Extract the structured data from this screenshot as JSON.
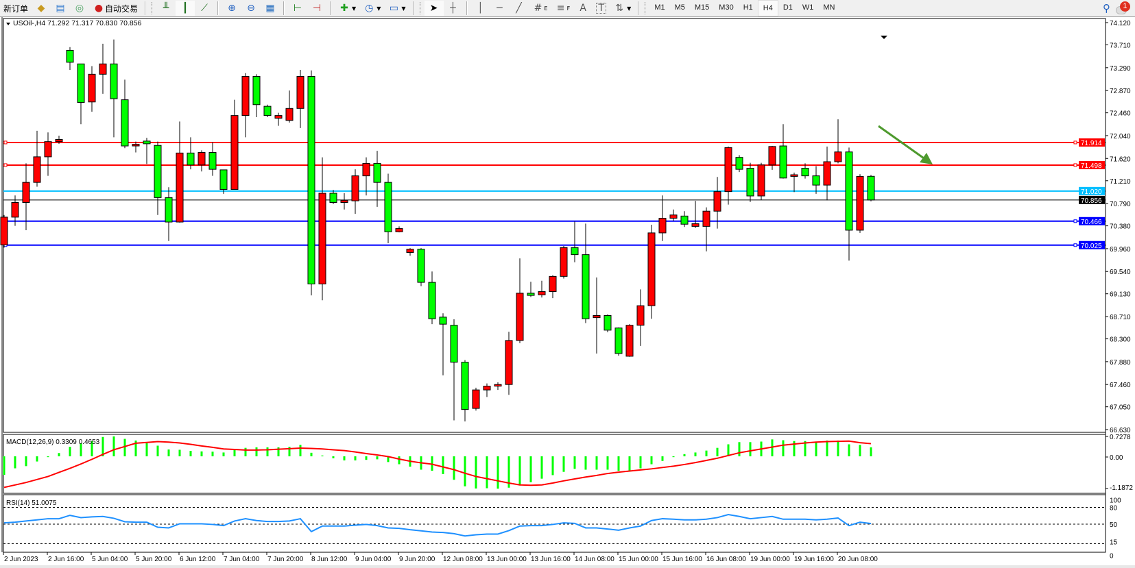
{
  "toolbar": {
    "new_order_label": "新订单",
    "auto_trading_label": "自动交易",
    "icons_left": [
      "market-watch-icon",
      "data-window-icon",
      "navigator-icon"
    ],
    "chart_type_icons": [
      "bar-chart-icon",
      "candlestick-icon",
      "line-chart-icon"
    ],
    "zoom_icons": [
      "zoom-in-icon",
      "zoom-out-icon",
      "tile-windows-icon"
    ],
    "scroll_icons": [
      "auto-scroll-icon",
      "chart-shift-icon"
    ],
    "object_tools": [
      "cursor-icon",
      "crosshair-icon",
      "vertical-line-icon",
      "horizontal-line-icon",
      "trendline-icon",
      "equidistant-channel-icon",
      "fibonacci-icon",
      "text-icon",
      "text-label-icon",
      "arrows-icon"
    ],
    "fib_channel_sub": "E",
    "fib_sub": "F",
    "text_tool": "A",
    "label_tool": "T",
    "timeframes": [
      "M1",
      "M5",
      "M15",
      "M30",
      "H1",
      "H4",
      "D1",
      "W1",
      "MN"
    ],
    "active_timeframe": "H4",
    "notification_count": "1"
  },
  "chart": {
    "header": "USOil-,H4  71.292 71.317 70.830 70.856",
    "symbol": "USOil-",
    "timeframe": "H4",
    "ohlc_readout": {
      "open": 71.292,
      "high": 71.317,
      "low": 70.83,
      "close": 70.856
    }
  },
  "colors": {
    "bull": "#ff0000",
    "bear": "#00ff00",
    "resistance": "#ff0000",
    "ask_line": "#00bfff",
    "bid_line": "#000000",
    "support": "#0000ff",
    "arrow": "#4e9a2e",
    "macd_hist": "#00ff00",
    "macd_signal": "#ff0000",
    "rsi": "#1e90ff"
  },
  "chart_data": [
    {
      "type": "candlestick",
      "title": "USOil-,H4",
      "yticks": [
        "74.120",
        "73.710",
        "73.290",
        "72.870",
        "72.460",
        "72.040",
        "71.620",
        "71.210",
        "70.790",
        "70.380",
        "69.960",
        "69.540",
        "69.130",
        "68.710",
        "68.300",
        "67.880",
        "67.460",
        "67.050",
        "66.630"
      ],
      "ylim": [
        66.63,
        74.12
      ],
      "xtick_labels": [
        "2 Jun 2023",
        "2 Jun 16:00",
        "5 Jun 04:00",
        "5 Jun 20:00",
        "6 Jun 12:00",
        "7 Jun 04:00",
        "7 Jun 20:00",
        "8 Jun 12:00",
        "9 Jun 04:00",
        "9 Jun 20:00",
        "12 Jun 08:00",
        "13 Jun 00:00",
        "13 Jun 16:00",
        "14 Jun 08:00",
        "15 Jun 00:00",
        "15 Jun 16:00",
        "16 Jun 08:00",
        "19 Jun 00:00",
        "19 Jun 16:00",
        "20 Jun 08:00"
      ],
      "xtick_every_bars": 4,
      "ohlc": [
        [
          70.03,
          70.58,
          69.98,
          70.54
        ],
        [
          70.54,
          70.94,
          70.38,
          70.81
        ],
        [
          70.81,
          71.53,
          70.3,
          71.18
        ],
        [
          71.18,
          72.13,
          71.1,
          71.65
        ],
        [
          71.65,
          72.1,
          71.3,
          71.93
        ],
        [
          71.93,
          72.04,
          71.89,
          71.97
        ],
        [
          73.61,
          73.67,
          73.25,
          73.39
        ],
        [
          73.36,
          73.36,
          72.25,
          72.65
        ],
        [
          72.66,
          73.32,
          72.48,
          73.17
        ],
        [
          73.17,
          73.73,
          72.81,
          73.36
        ],
        [
          73.36,
          73.81,
          72.01,
          72.72
        ],
        [
          72.7,
          73.07,
          71.81,
          71.85
        ],
        [
          71.85,
          71.93,
          71.73,
          71.88
        ],
        [
          71.94,
          72.0,
          71.52,
          71.89
        ],
        [
          71.86,
          71.93,
          70.58,
          70.9
        ],
        [
          70.9,
          71.09,
          70.1,
          70.45
        ],
        [
          70.45,
          72.3,
          70.44,
          71.72
        ],
        [
          71.72,
          72.01,
          71.42,
          71.5
        ],
        [
          71.5,
          71.77,
          71.38,
          71.73
        ],
        [
          71.73,
          71.92,
          71.3,
          71.42
        ],
        [
          71.41,
          71.41,
          70.97,
          71.05
        ],
        [
          71.05,
          72.7,
          71.05,
          72.41
        ],
        [
          72.41,
          73.19,
          72.01,
          73.13
        ],
        [
          73.13,
          73.17,
          72.38,
          72.61
        ],
        [
          72.58,
          72.61,
          72.38,
          72.41
        ],
        [
          72.36,
          72.46,
          72.22,
          72.41
        ],
        [
          72.32,
          72.87,
          72.28,
          72.54
        ],
        [
          72.54,
          73.25,
          72.18,
          73.13
        ],
        [
          73.13,
          73.24,
          69.1,
          69.31
        ],
        [
          69.31,
          71.64,
          69.01,
          70.98
        ],
        [
          70.98,
          71.04,
          70.78,
          70.81
        ],
        [
          70.81,
          70.98,
          70.68,
          70.85
        ],
        [
          70.84,
          71.42,
          70.6,
          71.3
        ],
        [
          71.3,
          71.64,
          70.94,
          71.53
        ],
        [
          71.53,
          71.76,
          70.73,
          71.18
        ],
        [
          71.18,
          71.34,
          70.06,
          70.27
        ],
        [
          70.27,
          70.37,
          70.26,
          70.33
        ],
        [
          69.89,
          69.97,
          69.83,
          69.95
        ],
        [
          69.95,
          69.97,
          69.27,
          69.34
        ],
        [
          69.34,
          69.54,
          68.57,
          68.67
        ],
        [
          68.7,
          68.77,
          67.63,
          68.57
        ],
        [
          68.55,
          68.66,
          66.8,
          67.87
        ],
        [
          67.87,
          67.91,
          66.78,
          67.0
        ],
        [
          67.02,
          67.4,
          66.98,
          67.36
        ],
        [
          67.36,
          67.48,
          67.23,
          67.43
        ],
        [
          67.43,
          67.5,
          67.36,
          67.46
        ],
        [
          67.46,
          68.43,
          67.27,
          68.27
        ],
        [
          68.27,
          69.78,
          68.22,
          69.14
        ],
        [
          69.14,
          69.35,
          69.07,
          69.1
        ],
        [
          69.11,
          69.37,
          69.06,
          69.17
        ],
        [
          69.17,
          69.47,
          69.05,
          69.45
        ],
        [
          69.45,
          70.01,
          69.41,
          69.98
        ],
        [
          69.98,
          70.46,
          69.71,
          69.85
        ],
        [
          69.85,
          70.42,
          68.59,
          68.67
        ],
        [
          68.69,
          69.43,
          68.03,
          68.73
        ],
        [
          68.73,
          68.75,
          68.42,
          68.46
        ],
        [
          68.5,
          68.51,
          67.99,
          68.03
        ],
        [
          67.98,
          68.57,
          67.97,
          68.55
        ],
        [
          68.55,
          69.21,
          68.17,
          68.91
        ],
        [
          68.91,
          70.4,
          68.67,
          70.25
        ],
        [
          70.25,
          70.94,
          70.1,
          70.52
        ],
        [
          70.52,
          70.68,
          70.47,
          70.58
        ],
        [
          70.56,
          70.65,
          70.36,
          70.41
        ],
        [
          70.37,
          70.84,
          70.34,
          70.42
        ],
        [
          70.37,
          70.72,
          69.91,
          70.65
        ],
        [
          70.65,
          71.28,
          70.33,
          71.01
        ],
        [
          71.01,
          71.84,
          70.77,
          71.82
        ],
        [
          71.64,
          71.68,
          71.37,
          71.42
        ],
        [
          71.44,
          71.54,
          70.82,
          70.93
        ],
        [
          70.93,
          71.54,
          70.86,
          71.5
        ],
        [
          71.5,
          71.85,
          71.41,
          71.84
        ],
        [
          71.85,
          72.25,
          71.25,
          71.26
        ],
        [
          71.29,
          71.36,
          71.0,
          71.32
        ],
        [
          71.44,
          71.53,
          71.25,
          71.3
        ],
        [
          71.3,
          71.48,
          70.97,
          71.13
        ],
        [
          71.13,
          71.84,
          70.85,
          71.56
        ],
        [
          71.56,
          72.34,
          71.53,
          71.74
        ],
        [
          71.74,
          71.82,
          69.74,
          70.3
        ],
        [
          70.3,
          71.33,
          70.25,
          71.29
        ],
        [
          71.292,
          71.317,
          70.83,
          70.856
        ]
      ],
      "hlines": [
        {
          "price": 71.914,
          "label": "71.914",
          "color": "#ff0000",
          "style": "resistance"
        },
        {
          "price": 71.498,
          "label": "71.498",
          "color": "#ff0000",
          "style": "resistance"
        },
        {
          "price": 71.02,
          "label": "71.020",
          "color": "#00bfff",
          "style": "ask"
        },
        {
          "price": 70.856,
          "label": "70.856",
          "color": "#000000",
          "style": "bid"
        },
        {
          "price": 70.466,
          "label": "70.466",
          "color": "#0000ff",
          "style": "support"
        },
        {
          "price": 70.025,
          "label": "70.025",
          "color": "#0000ff",
          "style": "support"
        }
      ],
      "annotation": {
        "type": "arrow",
        "direction": "down-right",
        "color": "#4e9a2e"
      }
    },
    {
      "type": "bar+line",
      "title": "MACD(12,26,9) 0.3309 0.4653",
      "yticks": [
        "0.7278",
        "0.00",
        "-1.1872"
      ],
      "ylim": [
        -1.1872,
        0.7278
      ],
      "histogram": [
        -0.68,
        -0.44,
        -0.36,
        -0.19,
        -0.03,
        0.12,
        0.35,
        0.48,
        0.56,
        0.71,
        0.73,
        0.64,
        0.58,
        0.48,
        0.39,
        0.25,
        0.24,
        0.2,
        0.18,
        0.17,
        0.14,
        0.23,
        0.31,
        0.33,
        0.33,
        0.33,
        0.35,
        0.42,
        0.13,
        0.03,
        -0.07,
        -0.15,
        -0.15,
        -0.13,
        -0.11,
        -0.21,
        -0.29,
        -0.38,
        -0.49,
        -0.53,
        -0.65,
        -0.86,
        -1.1,
        -1.18,
        -1.17,
        -1.19,
        -1.15,
        -1.07,
        -0.95,
        -0.82,
        -0.69,
        -0.57,
        -0.46,
        -0.49,
        -0.49,
        -0.49,
        -0.53,
        -0.53,
        -0.44,
        -0.29,
        -0.17,
        -0.03,
        0.08,
        0.14,
        0.21,
        0.31,
        0.44,
        0.52,
        0.52,
        0.54,
        0.62,
        0.59,
        0.56,
        0.56,
        0.54,
        0.58,
        0.58,
        0.44,
        0.42,
        0.3309
      ],
      "signal": [
        -1.14,
        -1.05,
        -0.96,
        -0.85,
        -0.74,
        -0.59,
        -0.44,
        -0.28,
        -0.11,
        0.07,
        0.24,
        0.36,
        0.48,
        0.51,
        0.54,
        0.52,
        0.49,
        0.44,
        0.38,
        0.33,
        0.27,
        0.25,
        0.23,
        0.23,
        0.24,
        0.26,
        0.28,
        0.3,
        0.29,
        0.27,
        0.24,
        0.21,
        0.16,
        0.1,
        0.05,
        -0.01,
        -0.1,
        -0.18,
        -0.24,
        -0.29,
        -0.39,
        -0.49,
        -0.62,
        -0.74,
        -0.82,
        -0.9,
        -0.98,
        -1.05,
        -1.06,
        -1.05,
        -0.98,
        -0.9,
        -0.83,
        -0.76,
        -0.7,
        -0.63,
        -0.58,
        -0.54,
        -0.5,
        -0.46,
        -0.41,
        -0.36,
        -0.3,
        -0.23,
        -0.15,
        -0.07,
        0.03,
        0.13,
        0.2,
        0.27,
        0.34,
        0.41,
        0.45,
        0.49,
        0.52,
        0.54,
        0.55,
        0.56,
        0.5,
        0.4653
      ]
    },
    {
      "type": "line",
      "title": "RSI(14) 51.0075",
      "yticks": [
        "100",
        "80",
        "50",
        "15",
        "0"
      ],
      "levels": [
        80,
        50,
        15
      ],
      "ylim": [
        0,
        100
      ],
      "values": [
        52.3,
        53.5,
        55.6,
        57.6,
        59.7,
        59.7,
        65.8,
        61.7,
        63.0,
        63.8,
        60.5,
        54.3,
        53.5,
        53.5,
        44.4,
        43.2,
        50.6,
        50.6,
        50.6,
        49.4,
        47.3,
        55.6,
        59.7,
        56.4,
        54.7,
        54.7,
        55.6,
        59.7,
        36.6,
        46.5,
        46.5,
        46.5,
        48.1,
        49.4,
        47.3,
        43.2,
        42.4,
        39.9,
        37.9,
        35.8,
        35.0,
        32.9,
        28.8,
        30.9,
        32.1,
        32.1,
        38.3,
        46.5,
        47.3,
        47.3,
        49.4,
        52.3,
        51.4,
        43.2,
        43.2,
        41.2,
        39.1,
        43.2,
        46.5,
        56.4,
        59.7,
        58.8,
        57.6,
        57.6,
        58.8,
        61.7,
        67.1,
        63.8,
        59.7,
        61.7,
        63.8,
        58.8,
        58.8,
        58.8,
        57.6,
        58.8,
        60.9,
        47.3,
        53.5,
        51.0075
      ]
    }
  ]
}
